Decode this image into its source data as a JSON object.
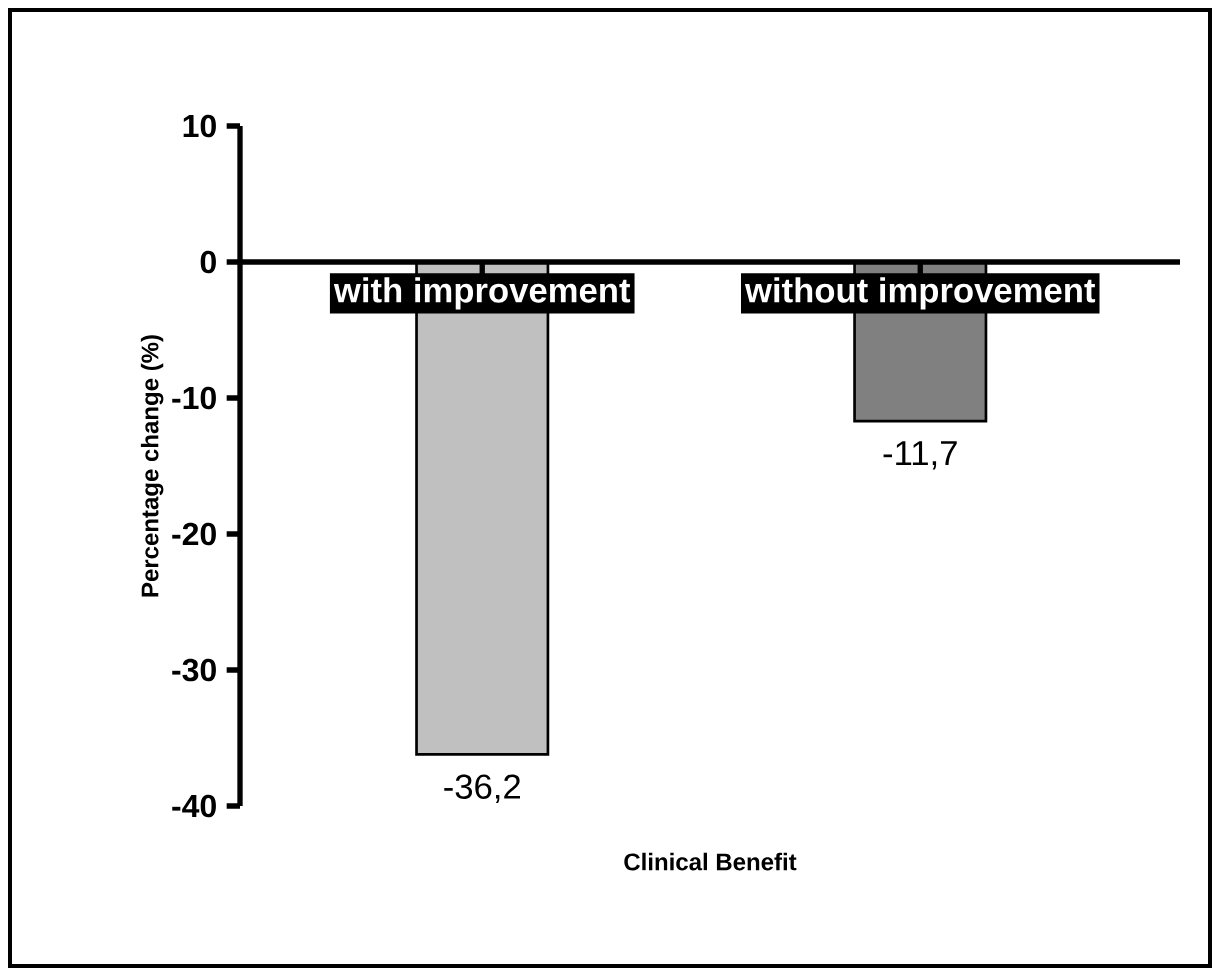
{
  "chart_data": {
    "type": "bar",
    "xlabel": "Clinical Benefit",
    "ylabel": "Percentage change (%)",
    "categories": [
      "with improvement",
      "without improvement"
    ],
    "values": [
      -36.2,
      -11.7
    ],
    "colors": [
      "#c0c0c0",
      "#808080"
    ],
    "value_labels": [
      "-36,2",
      "-11,7"
    ],
    "ylim": [
      -40,
      10
    ],
    "yticks": [
      -40,
      -30,
      -20,
      -10,
      0,
      10
    ],
    "grid": false
  }
}
